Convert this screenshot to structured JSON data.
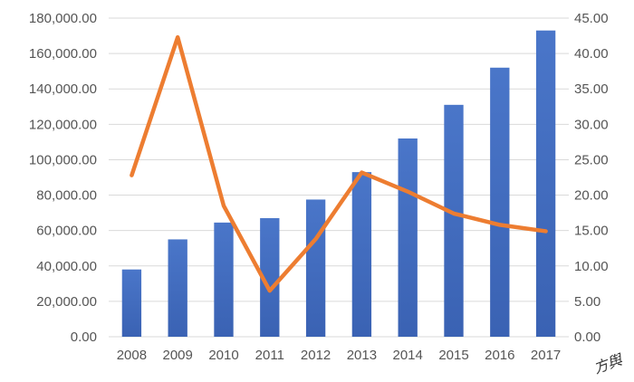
{
  "chart_data": {
    "type": "bar",
    "categories": [
      "2008",
      "2009",
      "2010",
      "2011",
      "2012",
      "2013",
      "2014",
      "2015",
      "2016",
      "2017"
    ],
    "series": [
      {
        "type": "bar",
        "axis": "left",
        "color": "#4472C4",
        "values": [
          38000,
          55000,
          64500,
          67000,
          77500,
          93000,
          112000,
          131000,
          152000,
          173000
        ]
      },
      {
        "type": "line",
        "axis": "right",
        "color": "#ED7D31",
        "values": [
          22.8,
          42.3,
          18.5,
          6.5,
          13.8,
          23.2,
          20.5,
          17.4,
          15.8,
          14.9
        ]
      }
    ],
    "y_left": {
      "lim": [
        0,
        180000
      ],
      "ticks": [
        "0.00",
        "20,000.00",
        "40,000.00",
        "60,000.00",
        "80,000.00",
        "100,000.00",
        "120,000.00",
        "140,000.00",
        "160,000.00",
        "180,000.00"
      ]
    },
    "y_right": {
      "lim": [
        0,
        45
      ],
      "ticks": [
        "0.00",
        "5.00",
        "10.00",
        "15.00",
        "20.00",
        "25.00",
        "30.00",
        "35.00",
        "40.00",
        "45.00"
      ]
    },
    "grid": true,
    "legend": "none"
  },
  "watermark": {
    "text": "方舆"
  }
}
